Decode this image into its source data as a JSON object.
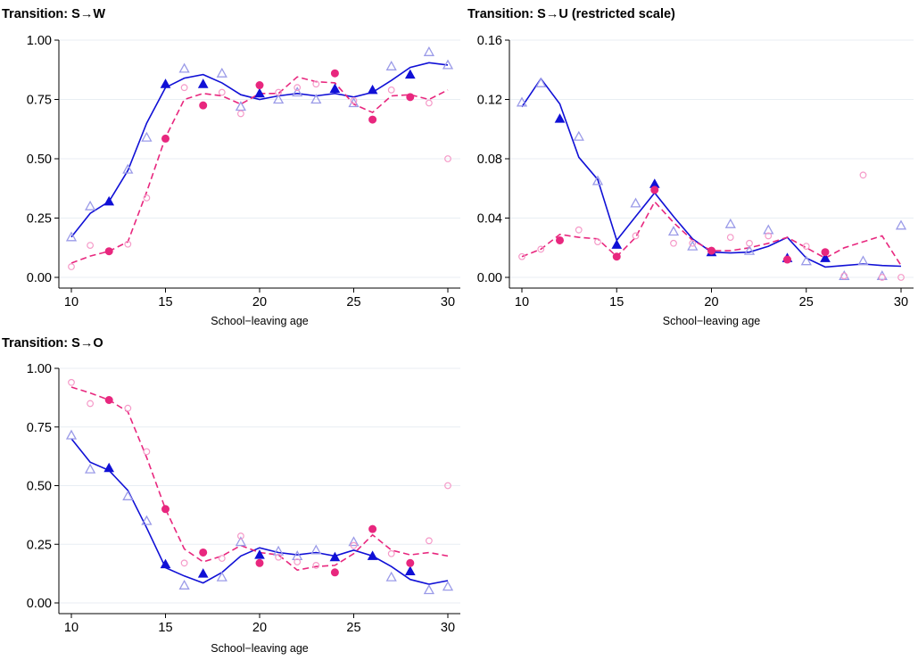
{
  "chart_data": [
    {
      "type": "scatter",
      "title": "Transition: S→W",
      "xlabel": "School−leaving age",
      "ylabel": "",
      "xlim": [
        10,
        30
      ],
      "ylim": [
        0,
        1
      ],
      "xticks": [
        10,
        15,
        20,
        25,
        30
      ],
      "yticks": [
        0,
        0.25,
        0.5,
        0.75,
        1.0
      ],
      "ytick_labels": [
        "0.00",
        "0.25",
        "0.50",
        "0.75",
        "1.00"
      ],
      "grid": true,
      "series": [
        {
          "color": "#1010d6",
          "style": "line-solid",
          "x": [
            10,
            11,
            12,
            13,
            14,
            15,
            16,
            17,
            18,
            19,
            20,
            21,
            22,
            23,
            24,
            25,
            26,
            27,
            28,
            29,
            30
          ],
          "y": [
            0.17,
            0.27,
            0.32,
            0.45,
            0.65,
            0.8,
            0.84,
            0.855,
            0.82,
            0.77,
            0.75,
            0.765,
            0.775,
            0.765,
            0.775,
            0.76,
            0.78,
            0.83,
            0.885,
            0.905,
            0.895
          ]
        },
        {
          "color": "#e8277e",
          "style": "line-dashed",
          "x": [
            10,
            11,
            12,
            13,
            14,
            15,
            16,
            17,
            18,
            19,
            20,
            21,
            22,
            23,
            24,
            25,
            26,
            27,
            28,
            29,
            30
          ],
          "y": [
            0.06,
            0.09,
            0.11,
            0.15,
            0.36,
            0.59,
            0.75,
            0.775,
            0.765,
            0.73,
            0.775,
            0.775,
            0.845,
            0.825,
            0.82,
            0.73,
            0.695,
            0.765,
            0.77,
            0.75,
            0.79
          ]
        },
        {
          "color": "#1010d6",
          "style": "marker-filled-triangle",
          "x": [
            12,
            15,
            17,
            20,
            24,
            26,
            28
          ],
          "y": [
            0.32,
            0.815,
            0.815,
            0.775,
            0.795,
            0.79,
            0.855
          ]
        },
        {
          "color": "#9b9be8",
          "style": "marker-hollow-triangle",
          "x": [
            10,
            11,
            13,
            14,
            16,
            18,
            19,
            21,
            22,
            23,
            25,
            27,
            29,
            30
          ],
          "y": [
            0.17,
            0.3,
            0.455,
            0.59,
            0.88,
            0.86,
            0.72,
            0.75,
            0.78,
            0.75,
            0.735,
            0.89,
            0.95,
            0.895
          ]
        },
        {
          "color": "#e8277e",
          "style": "marker-filled-circle",
          "x": [
            12,
            15,
            17,
            20,
            24,
            26,
            28
          ],
          "y": [
            0.11,
            0.585,
            0.725,
            0.81,
            0.86,
            0.665,
            0.76
          ]
        },
        {
          "color": "#f59ac8",
          "style": "marker-hollow-circle",
          "x": [
            10,
            11,
            13,
            14,
            16,
            18,
            19,
            21,
            22,
            23,
            25,
            27,
            29,
            30
          ],
          "y": [
            0.045,
            0.135,
            0.14,
            0.335,
            0.8,
            0.78,
            0.69,
            0.78,
            0.8,
            0.815,
            0.745,
            0.79,
            0.735,
            0.5
          ]
        }
      ]
    },
    {
      "type": "scatter",
      "title": "Transition: S→U (restricted scale)",
      "xlabel": "School−leaving age",
      "ylabel": "",
      "xlim": [
        10,
        30
      ],
      "ylim": [
        0,
        0.16
      ],
      "xticks": [
        10,
        15,
        20,
        25,
        30
      ],
      "yticks": [
        0,
        0.04,
        0.08,
        0.12,
        0.16
      ],
      "ytick_labels": [
        "0.00",
        "0.04",
        "0.08",
        "0.12",
        "0.16"
      ],
      "grid": true,
      "series": [
        {
          "color": "#1010d6",
          "style": "line-solid",
          "x": [
            10,
            11,
            12,
            13,
            14,
            15,
            16,
            17,
            18,
            19,
            20,
            21,
            22,
            23,
            24,
            25,
            26,
            27,
            28,
            29,
            30
          ],
          "y": [
            0.115,
            0.134,
            0.117,
            0.081,
            0.066,
            0.025,
            0.041,
            0.057,
            0.041,
            0.026,
            0.017,
            0.0165,
            0.017,
            0.021,
            0.027,
            0.013,
            0.007,
            0.008,
            0.009,
            0.008,
            0.0075
          ]
        },
        {
          "color": "#e8277e",
          "style": "line-dashed",
          "x": [
            10,
            11,
            12,
            13,
            14,
            15,
            16,
            17,
            18,
            19,
            20,
            21,
            22,
            23,
            24,
            25,
            26,
            27,
            28,
            29,
            30
          ],
          "y": [
            0.014,
            0.019,
            0.029,
            0.027,
            0.026,
            0.014,
            0.027,
            0.051,
            0.037,
            0.025,
            0.018,
            0.018,
            0.02,
            0.023,
            0.027,
            0.02,
            0.013,
            0.02,
            0.024,
            0.028,
            0.008
          ]
        },
        {
          "color": "#1010d6",
          "style": "marker-filled-triangle",
          "x": [
            12,
            15,
            17,
            20,
            24,
            26
          ],
          "y": [
            0.107,
            0.022,
            0.063,
            0.017,
            0.013,
            0.013
          ]
        },
        {
          "color": "#9b9be8",
          "style": "marker-hollow-triangle",
          "x": [
            10,
            11,
            13,
            14,
            16,
            18,
            19,
            21,
            22,
            23,
            25,
            27,
            28,
            29,
            30
          ],
          "y": [
            0.118,
            0.131,
            0.095,
            0.065,
            0.05,
            0.031,
            0.021,
            0.036,
            0.018,
            0.032,
            0.011,
            0.001,
            0.011,
            0.001,
            0.035
          ]
        },
        {
          "color": "#e8277e",
          "style": "marker-filled-circle",
          "x": [
            12,
            15,
            17,
            20,
            24,
            26
          ],
          "y": [
            0.025,
            0.014,
            0.059,
            0.018,
            0.012,
            0.017
          ]
        },
        {
          "color": "#f59ac8",
          "style": "marker-hollow-circle",
          "x": [
            10,
            11,
            13,
            14,
            16,
            18,
            19,
            21,
            22,
            23,
            25,
            27,
            28,
            29,
            30
          ],
          "y": [
            0.014,
            0.019,
            0.032,
            0.024,
            0.028,
            0.023,
            0.023,
            0.027,
            0.023,
            0.028,
            0.021,
            0.001,
            0.069,
            0.0,
            0.0
          ]
        }
      ]
    },
    {
      "type": "scatter",
      "title": "Transition: S→O",
      "xlabel": "School−leaving age",
      "ylabel": "",
      "xlim": [
        10,
        30
      ],
      "ylim": [
        0,
        1
      ],
      "xticks": [
        10,
        15,
        20,
        25,
        30
      ],
      "yticks": [
        0,
        0.25,
        0.5,
        0.75,
        1.0
      ],
      "ytick_labels": [
        "0.00",
        "0.25",
        "0.50",
        "0.75",
        "1.00"
      ],
      "grid": true,
      "series": [
        {
          "color": "#1010d6",
          "style": "line-solid",
          "x": [
            10,
            11,
            12,
            13,
            14,
            15,
            16,
            17,
            18,
            19,
            20,
            21,
            22,
            23,
            24,
            25,
            26,
            27,
            28,
            29,
            30
          ],
          "y": [
            0.7,
            0.6,
            0.565,
            0.48,
            0.32,
            0.15,
            0.115,
            0.085,
            0.13,
            0.2,
            0.235,
            0.215,
            0.205,
            0.215,
            0.2,
            0.225,
            0.2,
            0.155,
            0.1,
            0.08,
            0.095
          ]
        },
        {
          "color": "#e8277e",
          "style": "line-dashed",
          "x": [
            10,
            11,
            12,
            13,
            14,
            15,
            16,
            17,
            18,
            19,
            20,
            21,
            22,
            23,
            24,
            25,
            26,
            27,
            28,
            29,
            30
          ],
          "y": [
            0.92,
            0.895,
            0.865,
            0.815,
            0.62,
            0.4,
            0.23,
            0.175,
            0.2,
            0.245,
            0.215,
            0.205,
            0.14,
            0.155,
            0.16,
            0.21,
            0.29,
            0.225,
            0.205,
            0.215,
            0.2
          ]
        },
        {
          "color": "#1010d6",
          "style": "marker-filled-triangle",
          "x": [
            12,
            15,
            17,
            20,
            24,
            26,
            28
          ],
          "y": [
            0.575,
            0.165,
            0.125,
            0.205,
            0.195,
            0.2,
            0.135
          ]
        },
        {
          "color": "#9b9be8",
          "style": "marker-hollow-triangle",
          "x": [
            10,
            11,
            13,
            14,
            16,
            18,
            19,
            21,
            22,
            23,
            25,
            27,
            29,
            30
          ],
          "y": [
            0.715,
            0.57,
            0.455,
            0.35,
            0.075,
            0.11,
            0.26,
            0.22,
            0.2,
            0.225,
            0.26,
            0.11,
            0.055,
            0.07
          ]
        },
        {
          "color": "#e8277e",
          "style": "marker-filled-circle",
          "x": [
            12,
            15,
            17,
            20,
            24,
            26,
            28
          ],
          "y": [
            0.865,
            0.4,
            0.215,
            0.17,
            0.13,
            0.315,
            0.17
          ]
        },
        {
          "color": "#f59ac8",
          "style": "marker-hollow-circle",
          "x": [
            10,
            11,
            13,
            14,
            16,
            18,
            19,
            21,
            22,
            23,
            25,
            27,
            29,
            30
          ],
          "y": [
            0.94,
            0.85,
            0.83,
            0.645,
            0.17,
            0.19,
            0.285,
            0.195,
            0.175,
            0.16,
            0.245,
            0.21,
            0.265,
            0.5
          ]
        }
      ]
    }
  ]
}
